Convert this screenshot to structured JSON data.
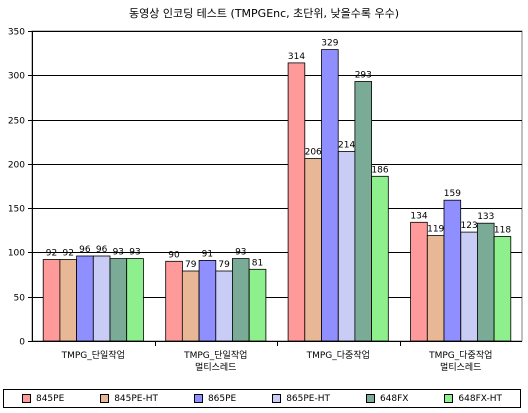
{
  "chart_data": {
    "type": "bar",
    "title": "동영상 인코딩 테스트 (TMPGEnc, 초단위, 낮을수록 우수)",
    "xlabel": "",
    "ylabel": "",
    "ylim": [
      0,
      350
    ],
    "yticks": [
      0,
      50,
      100,
      150,
      200,
      250,
      300,
      350
    ],
    "grid": true,
    "legend_position": "bottom",
    "categories": [
      [
        "TMPG_단일작업"
      ],
      [
        "TMPG_단일작업",
        "멀티스레드"
      ],
      [
        "TMPG_다중작업"
      ],
      [
        "TMPG_다중작업",
        "멀티스레드"
      ]
    ],
    "series": [
      {
        "name": "845PE",
        "color": "#ff9a9a",
        "values": [
          92,
          90,
          314,
          134
        ]
      },
      {
        "name": "845PE-HT",
        "color": "#e8b896",
        "values": [
          92,
          79,
          206,
          119
        ]
      },
      {
        "name": "865PE",
        "color": "#8f8fff",
        "values": [
          96,
          91,
          329,
          159
        ]
      },
      {
        "name": "865PE-HT",
        "color": "#c9ccf5",
        "values": [
          96,
          79,
          214,
          123
        ]
      },
      {
        "name": "648FX",
        "color": "#7aab96",
        "values": [
          93,
          93,
          293,
          133
        ]
      },
      {
        "name": "648FX-HT",
        "color": "#8df08d",
        "values": [
          93,
          81,
          186,
          118
        ]
      }
    ]
  }
}
